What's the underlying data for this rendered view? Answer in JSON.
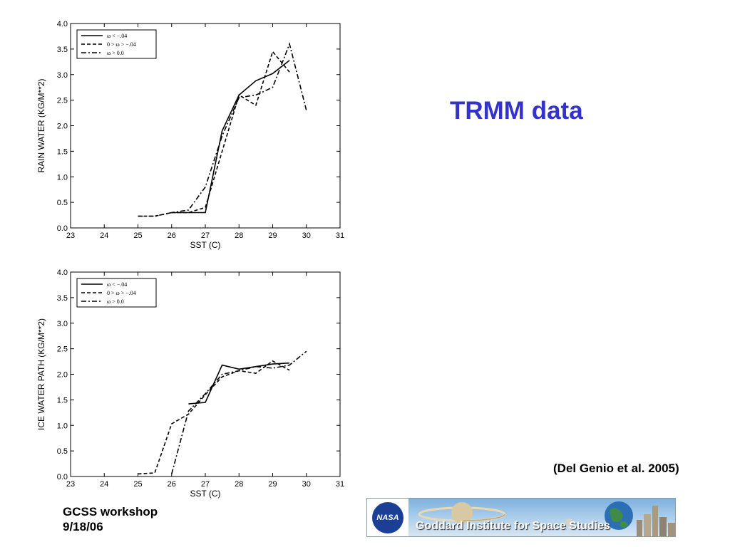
{
  "slide": {
    "title": "TRMM data",
    "citation": "(Del Genio et al. 2005)",
    "footer_line1": "GCSS workshop",
    "footer_line2": "9/18/06",
    "banner_logo_text": "NASA",
    "banner_text": "Goddard Institute for Space Studies",
    "title_color": "#3333cc"
  },
  "chart_data": [
    {
      "type": "line",
      "title": "",
      "xlabel": "SST (C)",
      "ylabel": "RAIN WATER (KG/M**2)",
      "xlim": [
        23,
        31
      ],
      "ylim": [
        0,
        4.0
      ],
      "xticks": [
        "23",
        "24",
        "25",
        "26",
        "27",
        "28",
        "29",
        "30",
        "31"
      ],
      "yticks": [
        "0.0",
        "0.5",
        "1.0",
        "1.5",
        "2.0",
        "2.5",
        "3.0",
        "3.5",
        "4.0"
      ],
      "grid": false,
      "legend_position": "top-left",
      "series": [
        {
          "name": "ω < −.04",
          "style": "solid",
          "x": [
            26.0,
            26.5,
            27.0,
            27.5,
            28.0,
            28.5,
            29.0,
            29.5
          ],
          "y": [
            0.3,
            0.3,
            0.3,
            1.9,
            2.6,
            2.88,
            3.02,
            3.28
          ]
        },
        {
          "name": "0 > ω > −.04",
          "style": "dashed",
          "x": [
            25.0,
            25.5,
            26.0,
            26.5,
            27.0,
            27.5,
            28.0,
            28.5,
            29.0,
            29.5
          ],
          "y": [
            0.23,
            0.23,
            0.3,
            0.3,
            0.4,
            1.5,
            2.6,
            2.4,
            3.45,
            3.05
          ]
        },
        {
          "name": "ω > 0.0",
          "style": "dashdot",
          "x": [
            25.0,
            25.5,
            26.0,
            26.5,
            27.0,
            27.5,
            28.0,
            28.5,
            29.0,
            29.5,
            30.0
          ],
          "y": [
            0.23,
            0.23,
            0.3,
            0.35,
            0.8,
            1.8,
            2.55,
            2.6,
            2.75,
            3.6,
            2.3
          ]
        }
      ]
    },
    {
      "type": "line",
      "title": "",
      "xlabel": "SST (C)",
      "ylabel": "ICE WATER PATH (KG/M**2)",
      "xlim": [
        23,
        31
      ],
      "ylim": [
        0,
        4.0
      ],
      "xticks": [
        "23",
        "24",
        "25",
        "26",
        "27",
        "28",
        "29",
        "30",
        "31"
      ],
      "yticks": [
        "0.0",
        "0.5",
        "1.0",
        "1.5",
        "2.0",
        "2.5",
        "3.0",
        "3.5",
        "4.0"
      ],
      "grid": false,
      "legend_position": "top-left",
      "series": [
        {
          "name": "ω < −.04",
          "style": "solid",
          "x": [
            26.5,
            27.0,
            27.5,
            28.0,
            28.5,
            29.0,
            29.5
          ],
          "y": [
            1.42,
            1.45,
            2.18,
            2.1,
            2.15,
            2.2,
            2.22
          ]
        },
        {
          "name": "0 > ω > −.04",
          "style": "dashed",
          "x": [
            25.0,
            25.5,
            26.0,
            26.5,
            27.0,
            27.5,
            28.0,
            28.5,
            29.0,
            29.5
          ],
          "y": [
            0.05,
            0.07,
            1.03,
            1.22,
            1.6,
            1.95,
            2.07,
            2.02,
            2.26,
            2.08
          ]
        },
        {
          "name": "ω > 0.0",
          "style": "dashdot",
          "x": [
            26.0,
            26.5,
            27.0,
            27.5,
            28.0,
            28.5,
            29.0,
            29.5,
            30.0
          ],
          "y": [
            0.05,
            1.28,
            1.62,
            2.0,
            2.07,
            2.15,
            2.12,
            2.18,
            2.45
          ]
        }
      ]
    }
  ]
}
